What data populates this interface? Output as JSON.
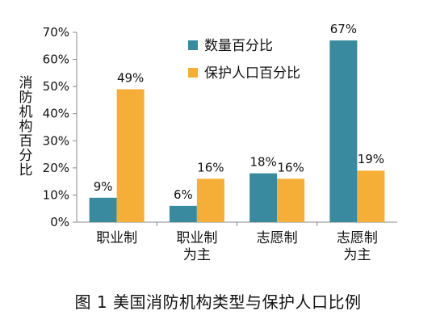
{
  "chart_data": {
    "type": "bar",
    "categories": [
      "职业制",
      "职业制为主",
      "志愿制",
      "志愿制为主"
    ],
    "category_lines": [
      [
        "职业制"
      ],
      [
        "职业制",
        "为主"
      ],
      [
        "志愿制"
      ],
      [
        "志愿制",
        "为主"
      ]
    ],
    "series": [
      {
        "name": "数量百分比",
        "color": "#3A8A9F",
        "values": [
          9,
          6,
          18,
          67
        ]
      },
      {
        "name": "保护人口百分比",
        "color": "#F5AE38",
        "values": [
          49,
          16,
          16,
          19
        ]
      }
    ],
    "value_suffix": "%",
    "ylabel": "消防机构百分比",
    "ylim": [
      0,
      70
    ],
    "yticks": [
      0,
      10,
      20,
      30,
      40,
      50,
      60,
      70
    ],
    "ytick_labels": [
      "0%",
      "10%",
      "20%",
      "30%",
      "40%",
      "50%",
      "60%",
      "70%"
    ],
    "grid": false,
    "legend_position": "top-left"
  },
  "caption": "图 1  美国消防机构类型与保护人口比例"
}
